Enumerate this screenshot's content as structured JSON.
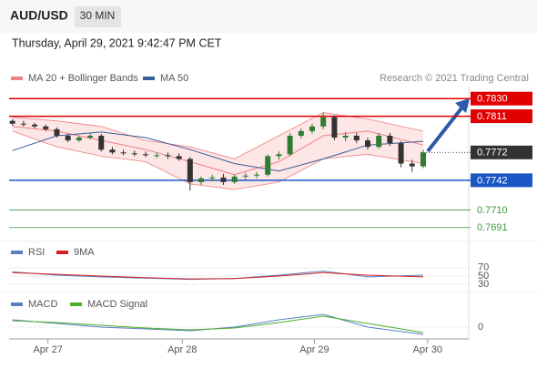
{
  "header": {
    "symbol": "AUD/USD",
    "interval": "30 MIN",
    "timestamp": "Thursday, April 29, 2021 9:42:47 PM CET"
  },
  "chart_data": [
    {
      "type": "candlestick",
      "annotation": "Research © 2021 Trading Central",
      "up_color": "#2e7d32",
      "down_color": "#333333",
      "x": [
        0,
        1,
        2,
        3,
        4,
        5,
        6,
        7,
        8,
        9,
        10,
        11,
        12,
        13,
        14,
        15,
        16,
        17,
        18,
        19,
        20,
        21,
        22,
        23,
        24,
        25,
        26,
        27,
        28,
        29,
        30,
        31,
        32,
        33,
        34,
        35,
        36,
        37
      ],
      "open": [
        0.7806,
        0.7803,
        0.7802,
        0.78,
        0.7797,
        0.779,
        0.7785,
        0.7788,
        0.779,
        0.7775,
        0.7772,
        0.7771,
        0.777,
        0.7769,
        0.7769,
        0.7768,
        0.7765,
        0.774,
        0.7744,
        0.7745,
        0.774,
        0.7746,
        0.7747,
        0.7748,
        0.7768,
        0.777,
        0.779,
        0.7795,
        0.78,
        0.781,
        0.7788,
        0.779,
        0.7785,
        0.7778,
        0.779,
        0.7782,
        0.776,
        0.7757
      ],
      "high": [
        0.7808,
        0.7806,
        0.7804,
        0.7802,
        0.7799,
        0.7792,
        0.779,
        0.7793,
        0.7792,
        0.7778,
        0.7775,
        0.7774,
        0.7773,
        0.7772,
        0.7772,
        0.7771,
        0.7767,
        0.7746,
        0.7748,
        0.7749,
        0.7748,
        0.775,
        0.7751,
        0.777,
        0.7773,
        0.7793,
        0.7798,
        0.7803,
        0.7815,
        0.7812,
        0.7794,
        0.7793,
        0.7788,
        0.7793,
        0.7793,
        0.7784,
        0.7764,
        0.7775
      ],
      "low": [
        0.7801,
        0.78,
        0.7798,
        0.7795,
        0.7788,
        0.7783,
        0.7783,
        0.7786,
        0.7773,
        0.777,
        0.7769,
        0.7768,
        0.7767,
        0.7766,
        0.7765,
        0.7763,
        0.7731,
        0.7737,
        0.7741,
        0.7737,
        0.7738,
        0.7743,
        0.7744,
        0.7746,
        0.7764,
        0.7768,
        0.7787,
        0.7792,
        0.7797,
        0.7785,
        0.7784,
        0.7782,
        0.7775,
        0.7776,
        0.7779,
        0.7756,
        0.7751,
        0.7755
      ],
      "close": [
        0.7803,
        0.7802,
        0.78,
        0.7797,
        0.779,
        0.7785,
        0.7788,
        0.779,
        0.7775,
        0.7772,
        0.7771,
        0.777,
        0.7769,
        0.7769,
        0.7768,
        0.7765,
        0.774,
        0.7744,
        0.7745,
        0.774,
        0.7746,
        0.7747,
        0.7748,
        0.7768,
        0.777,
        0.779,
        0.7795,
        0.78,
        0.781,
        0.7788,
        0.779,
        0.7785,
        0.7778,
        0.779,
        0.7782,
        0.776,
        0.7757,
        0.7772
      ],
      "overlays": [
        {
          "name": "MA 20 + Bollinger Bands",
          "color": "#f08080",
          "band_color": "#fde0e0",
          "x": [
            0,
            4,
            8,
            12,
            16,
            20,
            24,
            28,
            32,
            37
          ],
          "values": [
            0.78,
            0.7795,
            0.7785,
            0.7775,
            0.7762,
            0.7748,
            0.7762,
            0.779,
            0.7795,
            0.778
          ],
          "upper": [
            0.781,
            0.7806,
            0.78,
            0.7785,
            0.7778,
            0.7765,
            0.779,
            0.7815,
            0.7808,
            0.7795
          ],
          "lower": [
            0.7795,
            0.7778,
            0.7768,
            0.7762,
            0.7738,
            0.7732,
            0.774,
            0.7765,
            0.777,
            0.776
          ]
        },
        {
          "name": "MA 50",
          "color": "#3a5e9c",
          "x": [
            0,
            4,
            8,
            12,
            16,
            20,
            24,
            28,
            32,
            37
          ],
          "values": [
            0.7774,
            0.779,
            0.7794,
            0.7788,
            0.7775,
            0.776,
            0.7752,
            0.7765,
            0.778,
            0.7784
          ]
        }
      ],
      "levels": [
        {
          "value": 0.783,
          "label": "0.7830",
          "color": "#e00000",
          "line": "solid",
          "box": true
        },
        {
          "value": 0.7811,
          "label": "0.7811",
          "color": "#e00000",
          "line": "solid",
          "box": true
        },
        {
          "value": 0.7772,
          "label": "0.7772",
          "color": "#333333",
          "line": "dotted",
          "box": true
        },
        {
          "value": 0.7742,
          "label": "0.7742",
          "color": "#1a56c4",
          "line": "solid",
          "box": true
        },
        {
          "value": 0.771,
          "label": "0.7710",
          "color": "#3a9a3a",
          "line": "thin",
          "box": false
        },
        {
          "value": 0.7691,
          "label": "0.7691",
          "color": "#3a9a3a",
          "line": "thin",
          "box": false
        }
      ],
      "xlim": [
        -0.3,
        41.1
      ],
      "ylim": [
        0.7679,
        0.7843
      ],
      "xticks": [
        {
          "value": 3.2,
          "label": "Apr 27"
        },
        {
          "value": 15.3,
          "label": "Apr 28"
        },
        {
          "value": 27.2,
          "label": "Apr 29"
        },
        {
          "value": 37.4,
          "label": "Apr 30"
        }
      ]
    },
    {
      "type": "line",
      "x": [
        0,
        4,
        8,
        12,
        16,
        20,
        24,
        28,
        32,
        37
      ],
      "series": [
        {
          "name": "RSI",
          "color": "#5b7fc7",
          "values": [
            60,
            52,
            48,
            45,
            42,
            44,
            52,
            62,
            48,
            52
          ]
        },
        {
          "name": "9MA",
          "color": "#d62020",
          "values": [
            58,
            54,
            50,
            46,
            43,
            44,
            50,
            58,
            52,
            48
          ]
        }
      ],
      "xlim": [
        -0.3,
        41.1
      ],
      "ylim": [
        17,
        85
      ],
      "yticks": [
        70,
        50,
        30
      ]
    },
    {
      "type": "line",
      "x": [
        0,
        4,
        8,
        12,
        16,
        20,
        24,
        28,
        32,
        37
      ],
      "series": [
        {
          "name": "MACD",
          "color": "#5b7fc7",
          "values": [
            0.0008,
            0.0004,
            0.0,
            -0.0002,
            -0.0004,
            0.0,
            0.0008,
            0.0014,
            0.0,
            -0.0008
          ]
        },
        {
          "name": "MACD Signal",
          "color": "#4caf2a",
          "values": [
            0.0007,
            0.0005,
            0.0002,
            -0.0001,
            -0.0003,
            -0.0001,
            0.0005,
            0.0012,
            0.0004,
            -0.0006
          ]
        }
      ],
      "xlim": [
        -0.3,
        41.1
      ],
      "ylim": [
        -0.0013,
        0.0019
      ],
      "yticks": [
        0
      ]
    }
  ]
}
